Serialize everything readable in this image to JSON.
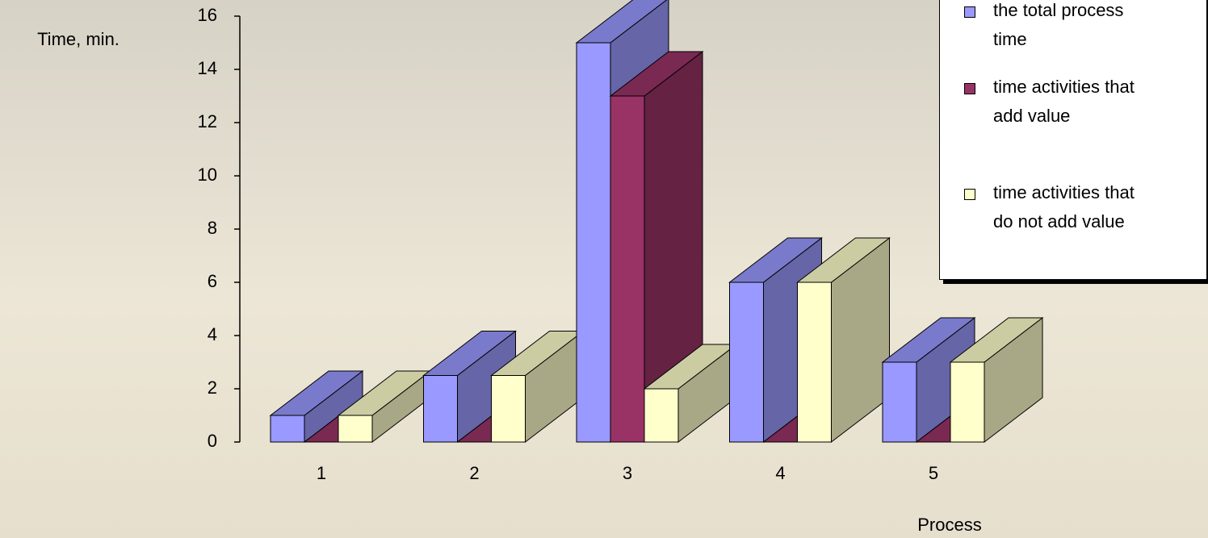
{
  "chart_data": {
    "type": "bar3d",
    "y_label": "Time, min.",
    "x_label": "Process",
    "categories": [
      "1",
      "2",
      "3",
      "4",
      "5"
    ],
    "series": [
      {
        "name": "the total process time",
        "color": "#9999ff",
        "values": [
          1,
          2.5,
          15,
          6,
          3
        ]
      },
      {
        "name": "time activities that add value",
        "color": "#993366",
        "values": [
          0,
          0,
          13,
          0,
          0
        ]
      },
      {
        "name": "time activities that do not add value",
        "color": "#ffffcc",
        "values": [
          1,
          2.5,
          2,
          6,
          3
        ]
      }
    ],
    "ylim": [
      0,
      16
    ],
    "yticks": [
      0,
      2,
      4,
      6,
      8,
      10,
      12,
      14,
      16
    ]
  }
}
